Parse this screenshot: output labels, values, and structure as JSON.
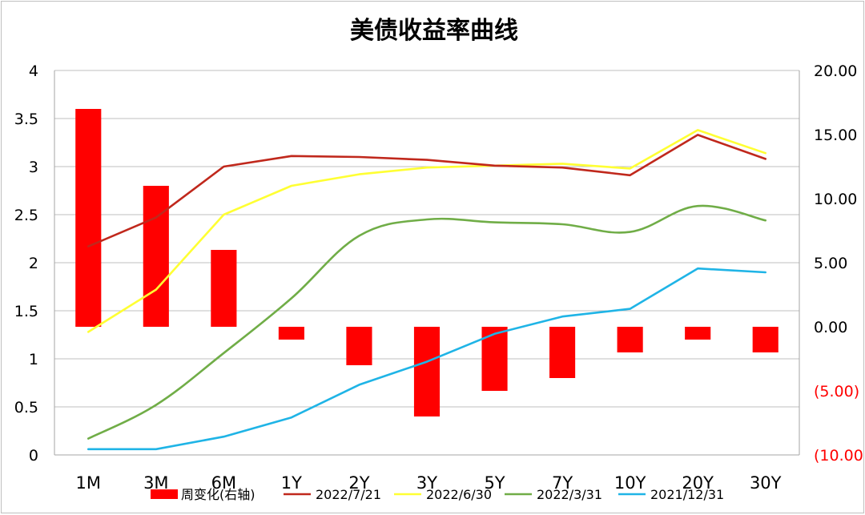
{
  "chart_data": {
    "type": "line",
    "title": "美债收益率曲线",
    "categories": [
      "1M",
      "3M",
      "6M",
      "1Y",
      "2Y",
      "3Y",
      "5Y",
      "7Y",
      "10Y",
      "20Y",
      "30Y"
    ],
    "y_left": {
      "ylim": [
        0,
        4
      ],
      "ticks": [
        "0",
        "0.5",
        "1",
        "1.5",
        "2",
        "2.5",
        "3",
        "3.5",
        "4"
      ]
    },
    "y_right": {
      "ylim": [
        -10,
        20
      ],
      "ticks": [
        "(10.00)",
        "(5.00)",
        "0.00",
        "5.00",
        "10.00",
        "15.00",
        "20.00"
      ],
      "negative_color": "#ff0000"
    },
    "grid": true,
    "legend_position": "bottom",
    "bar_series": {
      "name": "周变化(右轴)",
      "axis": "right",
      "color": "#ff0000",
      "values": [
        17,
        11,
        6,
        -1,
        -3,
        -7,
        -5,
        -4,
        -2,
        -1,
        -2
      ]
    },
    "series": [
      {
        "name": "2022/7/21",
        "color": "#c0281c",
        "values": [
          2.17,
          2.47,
          3.0,
          3.11,
          3.1,
          3.07,
          3.01,
          2.99,
          2.91,
          3.33,
          3.08
        ]
      },
      {
        "name": "2022/6/30",
        "color": "#ffff33",
        "values": [
          1.28,
          1.72,
          2.5,
          2.8,
          2.92,
          2.99,
          3.01,
          3.03,
          2.98,
          3.38,
          3.14
        ]
      },
      {
        "name": "2022/3/31",
        "color": "#70ad47",
        "values": [
          0.17,
          0.52,
          1.06,
          1.63,
          2.28,
          2.45,
          2.42,
          2.4,
          2.32,
          2.59,
          2.44
        ]
      },
      {
        "name": "2021/12/31",
        "color": "#1fb4e6",
        "values": [
          0.06,
          0.06,
          0.19,
          0.39,
          0.73,
          0.97,
          1.26,
          1.44,
          1.52,
          1.94,
          1.9
        ]
      }
    ]
  }
}
